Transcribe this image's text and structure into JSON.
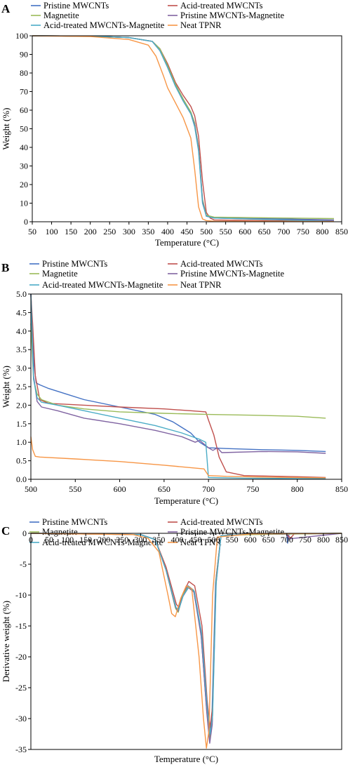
{
  "chart_data": [
    {
      "type": "line",
      "panel": "A",
      "xlabel": "Temperature (°C)",
      "ylabel": "Weight (%)",
      "xlim": [
        50,
        850
      ],
      "ylim": [
        0,
        100
      ],
      "xticks": [
        50,
        100,
        150,
        200,
        250,
        300,
        350,
        400,
        450,
        500,
        550,
        600,
        650,
        700,
        750,
        800,
        850
      ],
      "yticks": [
        0,
        10,
        20,
        30,
        40,
        50,
        60,
        70,
        80,
        90,
        100
      ],
      "legend": [
        "Pristine MWCNTs",
        "Acid-treated MWCNTs",
        "Magnetite",
        "Pristine MWCNTs-Magnetite",
        "Acid-treated MWCNTs-Magnetite",
        "Neat TPNR"
      ],
      "series": [
        {
          "name": "Pristine MWCNTs",
          "color": "#4472c4",
          "x": [
            50,
            200,
            300,
            360,
            380,
            400,
            420,
            440,
            460,
            470,
            480,
            490,
            500,
            520,
            700,
            830
          ],
          "y": [
            100,
            99.8,
            99,
            97,
            93,
            84,
            74,
            66,
            59,
            53,
            40,
            12,
            3,
            2,
            1.5,
            1
          ]
        },
        {
          "name": "Acid-treated MWCNTs",
          "color": "#c0504d",
          "x": [
            50,
            200,
            300,
            360,
            380,
            400,
            420,
            440,
            460,
            470,
            480,
            490,
            500,
            510,
            520,
            700,
            830
          ],
          "y": [
            100,
            99.8,
            99,
            97,
            93,
            85,
            75,
            68,
            62,
            57,
            46,
            22,
            5,
            2,
            1,
            0.5,
            0.2
          ]
        },
        {
          "name": "Magnetite",
          "color": "#9bbb59",
          "x": [
            50,
            200,
            300,
            360,
            380,
            400,
            420,
            440,
            460,
            470,
            480,
            490,
            500,
            520,
            700,
            830
          ],
          "y": [
            100,
            99.8,
            99,
            97,
            93,
            84,
            74,
            66,
            59,
            53,
            40,
            12,
            3.5,
            2.5,
            2,
            1.7
          ]
        },
        {
          "name": "Pristine MWCNTs-Magnetite",
          "color": "#8064a2",
          "x": [
            50,
            200,
            300,
            360,
            380,
            400,
            420,
            440,
            460,
            470,
            480,
            490,
            500,
            520,
            700,
            830
          ],
          "y": [
            100,
            99.8,
            99,
            97,
            92,
            83,
            73,
            65,
            58,
            52,
            39,
            11,
            3,
            2,
            1.1,
            0.8
          ]
        },
        {
          "name": "Acid-treated MWCNTs-Magnetite",
          "color": "#4bacc6",
          "x": [
            50,
            200,
            300,
            360,
            380,
            400,
            420,
            440,
            460,
            470,
            480,
            490,
            500,
            520,
            700,
            830
          ],
          "y": [
            100,
            99.8,
            99,
            97,
            92,
            83,
            73,
            65,
            58,
            51,
            38,
            10,
            3,
            2,
            1,
            0.2
          ]
        },
        {
          "name": "Neat TPNR",
          "color": "#f79646",
          "x": [
            50,
            200,
            300,
            350,
            370,
            390,
            400,
            420,
            440,
            460,
            470,
            480,
            490,
            500,
            520,
            830
          ],
          "y": [
            100,
            99.6,
            98,
            95,
            89,
            78,
            72,
            64,
            56,
            45,
            28,
            8,
            1.5,
            0.6,
            0.3,
            0.1
          ]
        }
      ]
    },
    {
      "type": "line",
      "panel": "B",
      "xlabel": "Temperature (°C)",
      "ylabel": "Weight (%)",
      "xlim": [
        500,
        850
      ],
      "ylim": [
        0,
        5
      ],
      "xticks": [
        500,
        550,
        600,
        650,
        700,
        750,
        800,
        850
      ],
      "yticks": [
        0.0,
        0.5,
        1.0,
        1.5,
        2.0,
        2.5,
        3.0,
        3.5,
        4.0,
        4.5,
        5.0
      ],
      "ytick_labels": [
        "0.0",
        "0.5",
        "1.0",
        "1.5",
        "2.0",
        "2.5",
        "3.0",
        "3.5",
        "4.0",
        "4.5",
        "5.0"
      ],
      "legend": [
        "Pristine MWCNTs",
        "Acid-treated MWCNTs",
        "Magnetite",
        "Pristine MWCNTs-Magnetite",
        "Acid-treated MWCNTs-Magnetite",
        "Neat TPNR"
      ],
      "series": [
        {
          "name": "Pristine MWCNTs",
          "color": "#4472c4",
          "x": [
            500,
            503,
            506,
            510,
            520,
            540,
            560,
            600,
            640,
            660,
            680,
            690,
            700,
            720,
            760,
            800,
            832
          ],
          "y": [
            5,
            3.2,
            2.6,
            2.55,
            2.45,
            2.3,
            2.15,
            1.95,
            1.75,
            1.55,
            1.25,
            1.0,
            0.85,
            0.83,
            0.8,
            0.78,
            0.75
          ]
        },
        {
          "name": "Acid-treated MWCNTs",
          "color": "#c0504d",
          "x": [
            500,
            502,
            505,
            510,
            520,
            560,
            600,
            650,
            680,
            697,
            700,
            706,
            712,
            720,
            740,
            800,
            832
          ],
          "y": [
            5,
            4.2,
            2.8,
            2.15,
            2.05,
            2.0,
            1.95,
            1.9,
            1.85,
            1.82,
            1.6,
            1.2,
            0.6,
            0.2,
            0.1,
            0.07,
            0.05
          ]
        },
        {
          "name": "Magnetite",
          "color": "#9bbb59",
          "x": [
            500,
            503,
            507,
            512,
            530,
            560,
            600,
            650,
            700,
            750,
            800,
            832
          ],
          "y": [
            4.2,
            2.7,
            2.3,
            2.15,
            2.0,
            1.9,
            1.82,
            1.78,
            1.75,
            1.73,
            1.7,
            1.65
          ]
        },
        {
          "name": "Pristine MWCNTs-Magnetite",
          "color": "#8064a2",
          "x": [
            500,
            503,
            507,
            512,
            530,
            560,
            600,
            640,
            670,
            685,
            690,
            700,
            705,
            710,
            715,
            760,
            800,
            832
          ],
          "y": [
            5,
            2.8,
            2.1,
            1.95,
            1.85,
            1.65,
            1.5,
            1.32,
            1.15,
            1.0,
            1.05,
            0.85,
            0.78,
            0.85,
            0.72,
            0.75,
            0.74,
            0.7
          ]
        },
        {
          "name": "Acid-treated MWCNTs-Magnetite",
          "color": "#4bacc6",
          "x": [
            500,
            503,
            507,
            512,
            530,
            560,
            600,
            640,
            670,
            690,
            697,
            700,
            740,
            800,
            832
          ],
          "y": [
            5,
            2.7,
            2.2,
            2.08,
            2.0,
            1.85,
            1.65,
            1.45,
            1.25,
            1.08,
            1.0,
            0.05,
            0.03,
            0.02,
            0.02
          ]
        },
        {
          "name": "Neat TPNR",
          "color": "#f79646",
          "x": [
            500,
            502,
            505,
            510,
            550,
            600,
            650,
            695,
            700,
            720,
            760,
            800,
            832
          ],
          "y": [
            1.15,
            0.8,
            0.62,
            0.6,
            0.55,
            0.48,
            0.38,
            0.28,
            0.1,
            0.08,
            0.06,
            0.05,
            0.04
          ]
        }
      ]
    },
    {
      "type": "line",
      "panel": "C",
      "xlabel": "Temperature (°C)",
      "ylabel": "Derivative weight (%)",
      "xlim": [
        0,
        850
      ],
      "ylim": [
        -35,
        0
      ],
      "xticks": [
        0,
        50,
        100,
        150,
        200,
        250,
        300,
        350,
        400,
        450,
        500,
        550,
        600,
        650,
        700,
        750,
        800,
        850
      ],
      "yticks": [
        0,
        -5,
        -10,
        -15,
        -20,
        -25,
        -30,
        -35
      ],
      "legend": [
        "Pristine MWCNTs",
        "Acid-treated MWCNTs",
        "Magnetite",
        "Pristine MWCNTs-Magnetite",
        "Acid-treated MWCNTs-Magnetite",
        "Neat TPNR"
      ],
      "series": [
        {
          "name": "Pristine MWCNTs",
          "color": "#4472c4",
          "x": [
            0,
            300,
            340,
            370,
            395,
            402,
            415,
            430,
            445,
            465,
            480,
            488,
            495,
            505,
            520,
            600,
            700,
            702,
            706,
            850
          ],
          "y": [
            0,
            -0.2,
            -1,
            -6,
            -12,
            -12.5,
            -10,
            -8.5,
            -9.2,
            -16,
            -28,
            -33,
            -30,
            -8,
            -0.4,
            -0.1,
            -0.1,
            -1.6,
            -0.1,
            0
          ]
        },
        {
          "name": "Acid-treated MWCNTs",
          "color": "#c0504d",
          "x": [
            0,
            300,
            340,
            370,
            398,
            405,
            418,
            432,
            448,
            468,
            482,
            490,
            497,
            507,
            520,
            600,
            700,
            710,
            720,
            850
          ],
          "y": [
            0,
            -0.2,
            -1,
            -5.5,
            -11.5,
            -12,
            -9.5,
            -7.8,
            -8.5,
            -15,
            -27,
            -31.5,
            -28,
            -7,
            -0.4,
            -0.1,
            -0.1,
            -0.8,
            -0.1,
            0
          ]
        },
        {
          "name": "Magnetite",
          "color": "#9bbb59",
          "x": [
            0,
            300,
            340,
            370,
            396,
            403,
            416,
            431,
            446,
            466,
            481,
            489,
            496,
            506,
            520,
            600,
            850
          ],
          "y": [
            0,
            -0.2,
            -1,
            -6,
            -12.2,
            -12.8,
            -10,
            -8.6,
            -9.3,
            -16.5,
            -28.5,
            -33.5,
            -30.5,
            -8,
            -0.4,
            -0.2,
            0
          ]
        },
        {
          "name": "Pristine MWCNTs-Magnetite",
          "color": "#8064a2",
          "x": [
            0,
            300,
            340,
            370,
            396,
            403,
            416,
            431,
            446,
            466,
            481,
            489,
            496,
            506,
            520,
            600,
            700,
            705,
            850
          ],
          "y": [
            0,
            -0.2,
            -1,
            -6,
            -12,
            -12.6,
            -10.2,
            -8.8,
            -9.5,
            -16.8,
            -29,
            -34,
            -31,
            -8.5,
            -0.4,
            -0.1,
            -0.1,
            -0.9,
            0
          ]
        },
        {
          "name": "Acid-treated MWCNTs-Magnetite",
          "color": "#4bacc6",
          "x": [
            0,
            300,
            340,
            370,
            397,
            404,
            417,
            432,
            447,
            467,
            482,
            490,
            497,
            507,
            520,
            600,
            850
          ],
          "y": [
            0,
            -0.2,
            -1,
            -6,
            -12,
            -12.4,
            -10,
            -8.7,
            -9.4,
            -16.2,
            -28,
            -32.5,
            -29.5,
            -7.8,
            -0.4,
            -0.1,
            0
          ]
        },
        {
          "name": "Neat TPNR",
          "color": "#f79646",
          "x": [
            0,
            280,
            320,
            350,
            375,
            385,
            395,
            410,
            425,
            440,
            460,
            472,
            480,
            487,
            497,
            510,
            600,
            850
          ],
          "y": [
            0,
            -0.2,
            -0.8,
            -3,
            -10,
            -13,
            -13.5,
            -10.5,
            -8.5,
            -9,
            -20,
            -30,
            -34.8,
            -32,
            -10,
            -0.6,
            -0.1,
            0
          ]
        }
      ]
    }
  ]
}
